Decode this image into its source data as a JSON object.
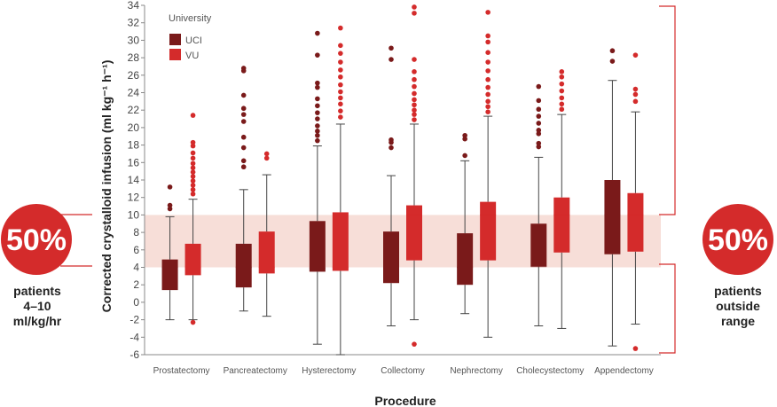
{
  "chart_data": {
    "type": "box",
    "title": "",
    "xlabel": "Procedure",
    "ylabel": "Corrected crystalloid infusion (ml kg⁻¹ h⁻¹)",
    "ylim": [
      -6,
      34
    ],
    "yticks": [
      -6,
      -4,
      -2,
      0,
      2,
      4,
      6,
      8,
      10,
      12,
      14,
      16,
      18,
      20,
      22,
      24,
      26,
      28,
      30,
      32,
      34
    ],
    "highlight_band": [
      4,
      10
    ],
    "legend": {
      "title": "University",
      "position": "top-left"
    },
    "categories": [
      "Prostatectomy",
      "Pancreatectomy",
      "Hysterectomy",
      "Collectomy",
      "Nephrectomy",
      "Cholecystectomy",
      "Appendectomy"
    ],
    "series": [
      {
        "name": "UCI",
        "color": "#7a1a1a",
        "boxes": [
          {
            "whisker_low": -2.0,
            "q1": 1.4,
            "median": 4.0,
            "q3": 4.9,
            "whisker_high": 9.8,
            "outliers": [
              10.7,
              11.1,
              13.2
            ]
          },
          {
            "whisker_low": -1.0,
            "q1": 1.7,
            "median": 4.0,
            "q3": 6.7,
            "whisker_high": 12.9,
            "outliers": [
              15.5,
              16.2,
              17.7,
              18.9,
              20.7,
              21.5,
              22.2,
              23.7,
              26.5,
              26.8
            ]
          },
          {
            "whisker_low": -4.8,
            "q1": 3.5,
            "median": 3.9,
            "q3": 9.3,
            "whisker_high": 17.9,
            "outliers": [
              18.5,
              19.1,
              19.6,
              20.2,
              21.0,
              21.7,
              22.5,
              23.3,
              24.6,
              25.1,
              28.3,
              30.8
            ]
          },
          {
            "whisker_low": -2.7,
            "q1": 2.2,
            "median": 4.0,
            "q3": 8.1,
            "whisker_high": 14.5,
            "outliers": [
              17.7,
              18.3,
              18.6,
              27.8,
              29.1
            ]
          },
          {
            "whisker_low": -1.3,
            "q1": 2.0,
            "median": 4.0,
            "q3": 7.9,
            "whisker_high": 16.2,
            "outliers": [
              16.8,
              18.7,
              19.1
            ]
          },
          {
            "whisker_low": -2.7,
            "q1": 4.1,
            "median": 4.1,
            "q3": 9.0,
            "whisker_high": 16.6,
            "outliers": [
              17.8,
              18.2,
              19.3,
              19.7,
              20.5,
              21.3,
              22.1,
              23.1,
              24.7
            ]
          },
          {
            "whisker_low": -5.0,
            "q1": 5.5,
            "median": 10.0,
            "q3": 14.0,
            "whisker_high": 25.4,
            "outliers": [
              27.6,
              28.8
            ]
          }
        ]
      },
      {
        "name": "VU",
        "color": "#d42b2b",
        "boxes": [
          {
            "whisker_low": -2.0,
            "q1": 3.1,
            "median": 4.0,
            "q3": 6.7,
            "whisker_high": 11.8,
            "outliers": [
              12.4,
              12.9,
              13.4,
              13.9,
              14.4,
              14.9,
              15.4,
              15.9,
              16.5,
              17.1,
              17.9,
              18.3,
              21.4,
              -2.3
            ]
          },
          {
            "whisker_low": -1.6,
            "q1": 3.3,
            "median": 4.0,
            "q3": 8.1,
            "whisker_high": 14.6,
            "outliers": [
              16.5,
              17.0
            ]
          },
          {
            "whisker_low": -6.0,
            "q1": 3.6,
            "median": 4.0,
            "q3": 10.3,
            "whisker_high": 20.4,
            "outliers": [
              21.2,
              21.9,
              22.7,
              23.4,
              24.1,
              24.9,
              25.8,
              26.6,
              27.5,
              28.5,
              29.4,
              31.4
            ]
          },
          {
            "whisker_low": -2.0,
            "q1": 4.8,
            "median": 10.0,
            "q3": 11.1,
            "whisker_high": 20.4,
            "outliers": [
              20.9,
              21.5,
              22.0,
              22.6,
              23.2,
              23.9,
              24.7,
              25.5,
              26.4,
              27.8,
              33.1,
              33.8,
              -4.8
            ]
          },
          {
            "whisker_low": -4.0,
            "q1": 4.8,
            "median": 10.0,
            "q3": 11.5,
            "whisker_high": 21.3,
            "outliers": [
              21.8,
              22.4,
              23.0,
              23.8,
              24.6,
              25.5,
              26.5,
              27.5,
              28.6,
              29.8,
              30.5,
              33.2
            ]
          },
          {
            "whisker_low": -3.0,
            "q1": 5.7,
            "median": 10.0,
            "q3": 12.0,
            "whisker_high": 21.5,
            "outliers": [
              22.1,
              22.7,
              23.4,
              24.2,
              25.0,
              25.8,
              26.4
            ]
          },
          {
            "whisker_low": -2.5,
            "q1": 5.8,
            "median": 10.0,
            "q3": 12.5,
            "whisker_high": 21.8,
            "outliers": [
              23.0,
              23.8,
              24.4,
              28.3,
              -5.3
            ]
          }
        ]
      }
    ]
  },
  "left_annotation": {
    "percent": "50%",
    "caption": "patients\n4–10\nml/kg/hr",
    "color": "#d42b2b"
  },
  "right_annotation": {
    "percent": "50%",
    "caption": "patients\noutside\nrange",
    "color": "#d42b2b"
  },
  "band_color": "#f7ded8",
  "whisker_color": "#444444"
}
